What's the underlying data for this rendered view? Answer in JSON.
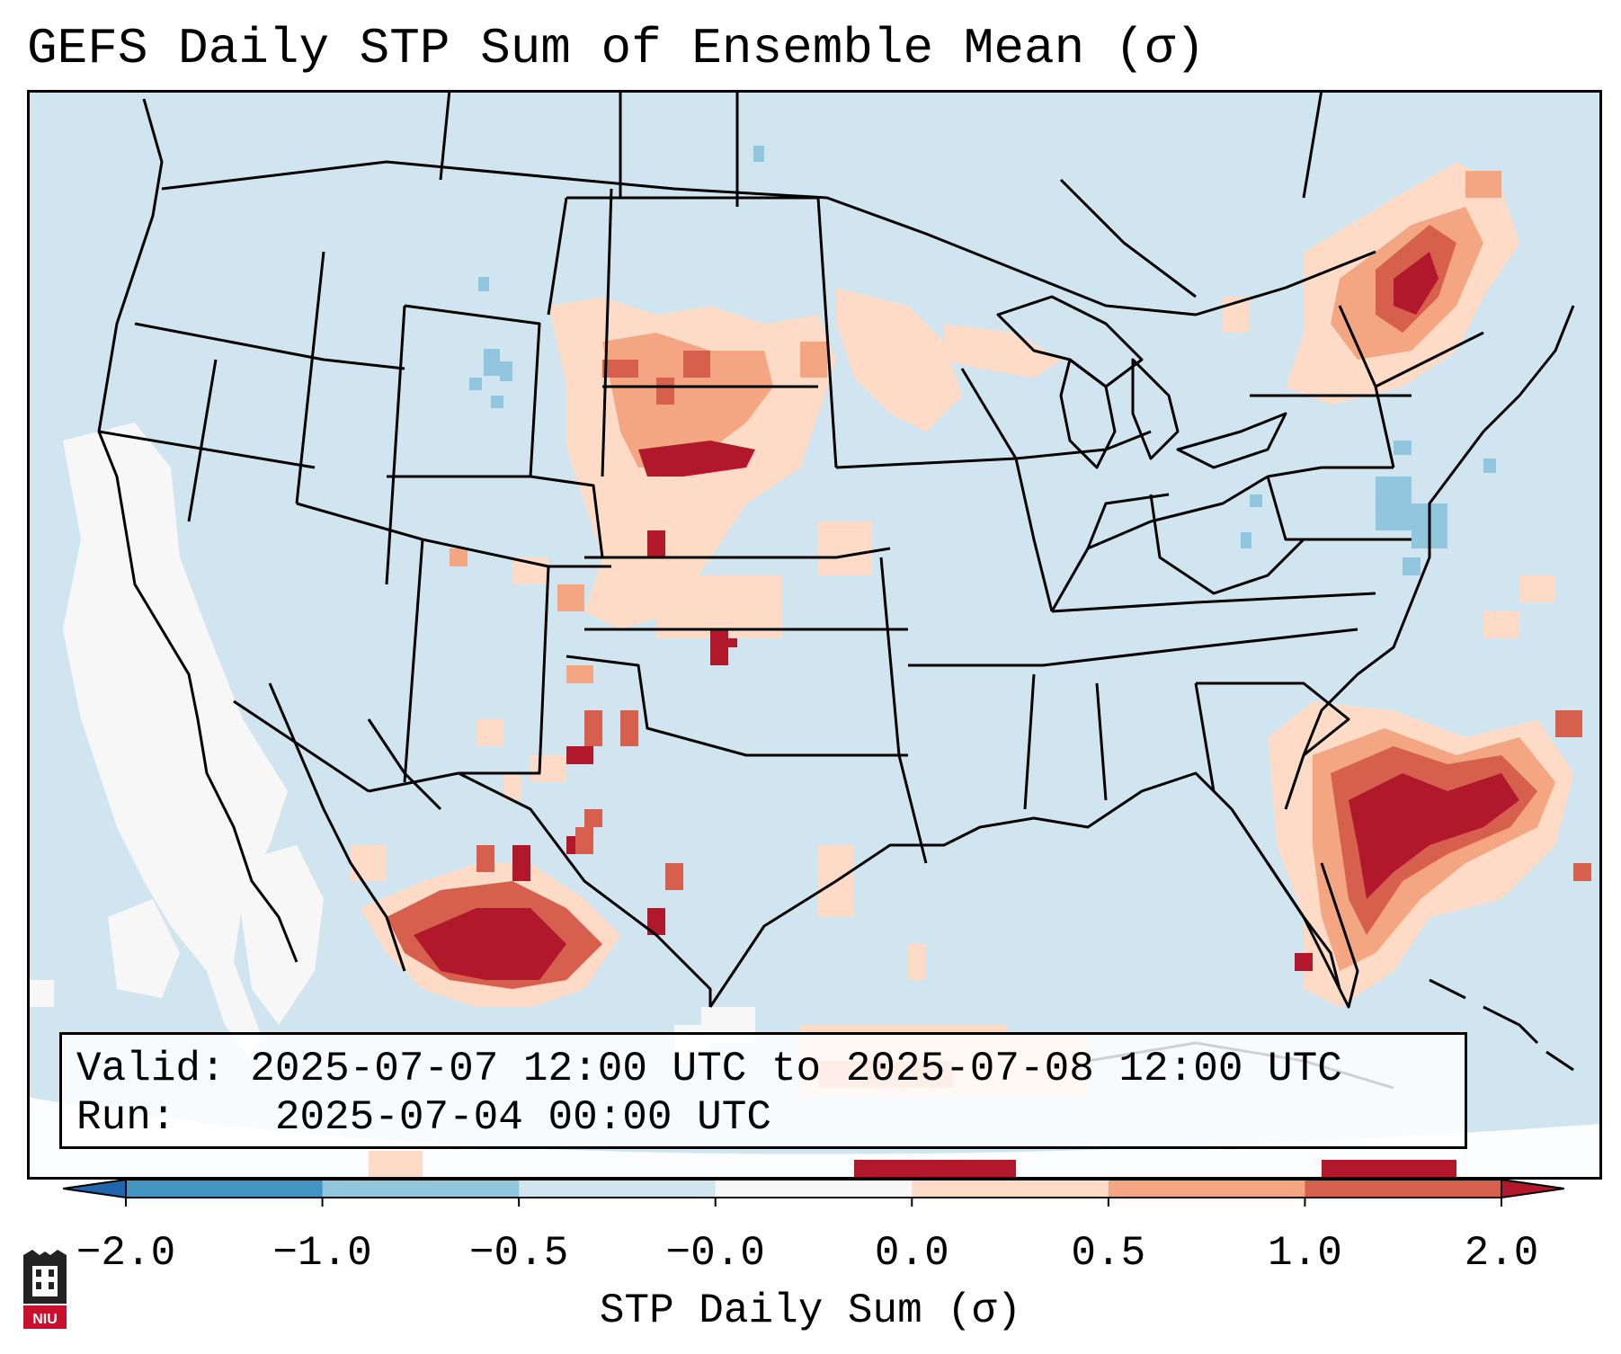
{
  "title": "GEFS Daily STP Sum of Ensemble Mean (σ)",
  "info": {
    "valid_label": "Valid:",
    "valid_value": "2025-07-07 12:00 UTC to 2025-07-08 12:00 UTC",
    "run_label": "Run:",
    "run_value": "2025-07-04 00:00 UTC"
  },
  "colorbar": {
    "label": "STP Daily Sum (σ)",
    "tick_labels": [
      "−2.0",
      "−1.0",
      "−0.5",
      "−0.0",
      "0.0",
      "0.5",
      "1.0",
      "2.0"
    ],
    "bins": [
      {
        "range": "< -2.0",
        "color": "#2166ac"
      },
      {
        "range": "-2.0 to -1.0",
        "color": "#4393c3"
      },
      {
        "range": "-1.0 to -0.5",
        "color": "#92c5de"
      },
      {
        "range": "-0.5 to -0.0",
        "color": "#d1e5f0"
      },
      {
        "range": "-0.0 to 0.0",
        "color": "#f7f7f7"
      },
      {
        "range": "0.0 to 0.5",
        "color": "#fddbc7"
      },
      {
        "range": "0.5 to 1.0",
        "color": "#f4a582"
      },
      {
        "range": "1.0 to 2.0",
        "color": "#d6604d"
      },
      {
        "range": "> 2.0",
        "color": "#b2182b"
      }
    ]
  },
  "map": {
    "projection": "Lambert Conformal (CONUS)",
    "background_color": "#d1e5f0",
    "features": [
      "Northeast U.S./Quebec maximum",
      "Southeast coast/Atlantic maximum",
      "Northern Mexico maximum",
      "High Plains scattered signal",
      "Pacific coast white (no data)"
    ]
  },
  "logo": {
    "text": "NIU"
  }
}
